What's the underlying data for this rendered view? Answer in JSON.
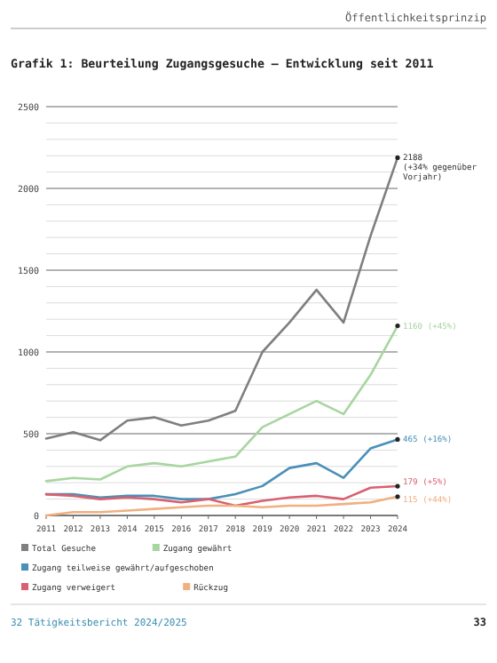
{
  "chart_data": {
    "type": "line",
    "title": "Grafik 1: Beurteilung Zugangsgesuche – Entwicklung seit 2011",
    "x": [
      2011,
      2012,
      2013,
      2014,
      2015,
      2016,
      2017,
      2018,
      2019,
      2020,
      2021,
      2022,
      2023,
      2024
    ],
    "xlim": [
      2011,
      2024
    ],
    "xticks": [
      2011,
      2012,
      2013,
      2014,
      2015,
      2016,
      2017,
      2018,
      2019,
      2020,
      2021,
      2022,
      2023,
      2024
    ],
    "ylim": [
      0,
      2500
    ],
    "yticks": [
      0,
      {
        "value": 100,
        "label": null
      },
      {
        "value": 200,
        "label": null
      },
      {
        "value": 300,
        "label": null
      },
      {
        "value": 400,
        "label": null
      },
      500,
      {
        "value": 600,
        "label": null
      },
      {
        "value": 700,
        "label": null
      },
      {
        "value": 800,
        "label": null
      },
      {
        "value": 900,
        "label": null
      },
      1000,
      {
        "value": 1100,
        "label": null
      },
      {
        "value": 1200,
        "label": null
      },
      {
        "value": 1300,
        "label": null
      },
      {
        "value": 1400,
        "label": null
      },
      1500,
      {
        "value": 1600,
        "label": null
      },
      {
        "value": 1700,
        "label": null
      },
      {
        "value": 1800,
        "label": null
      },
      {
        "value": 1900,
        "label": null
      },
      2000,
      {
        "value": 2100,
        "label": null
      },
      {
        "value": 2200,
        "label": null
      },
      {
        "value": 2300,
        "label": null
      },
      {
        "value": 2400,
        "label": null
      },
      2500
    ],
    "grid": "y",
    "legend": "bottom",
    "marker": "none",
    "line_style": "solid",
    "series": [
      {
        "name": "Total Gesuche",
        "color": "#7f7f7f",
        "values": [
          470,
          510,
          460,
          580,
          600,
          550,
          580,
          640,
          1000,
          1180,
          1380,
          1180,
          1710,
          2188
        ],
        "value_labels": [
          null,
          null,
          null,
          null,
          null,
          null,
          null,
          null,
          null,
          null,
          null,
          null,
          null,
          "2188\n(+34% gegenüber\nVorjahr)"
        ]
      },
      {
        "name": "Zugang gewährt",
        "color": "#a8d5a0",
        "values": [
          210,
          230,
          220,
          300,
          320,
          300,
          330,
          360,
          540,
          620,
          700,
          620,
          860,
          1160
        ],
        "value_labels": [
          null,
          null,
          null,
          null,
          null,
          null,
          null,
          null,
          null,
          null,
          null,
          null,
          null,
          "1160 (+45%)"
        ]
      },
      {
        "name": "Zugang teilweise gewährt/aufgeschoben",
        "color": "#4a90b8",
        "values": [
          130,
          130,
          110,
          120,
          120,
          100,
          100,
          130,
          180,
          290,
          320,
          230,
          410,
          465
        ],
        "value_labels": [
          null,
          null,
          null,
          null,
          null,
          null,
          null,
          null,
          null,
          null,
          null,
          null,
          null,
          "465 (+16%)"
        ]
      },
      {
        "name": "Zugang verweigert",
        "color": "#d96070",
        "values": [
          130,
          120,
          100,
          110,
          100,
          80,
          100,
          60,
          90,
          110,
          120,
          100,
          170,
          179
        ],
        "value_labels": [
          null,
          null,
          null,
          null,
          null,
          null,
          null,
          null,
          null,
          null,
          null,
          null,
          null,
          "179 (+5%)"
        ]
      },
      {
        "name": "Rückzug",
        "color": "#f0b080",
        "values": [
          0,
          20,
          20,
          30,
          40,
          50,
          60,
          60,
          50,
          60,
          60,
          70,
          80,
          115
        ],
        "value_labels": [
          null,
          null,
          null,
          null,
          null,
          null,
          null,
          null,
          null,
          null,
          null,
          null,
          null,
          "115 (+44%)"
        ]
      }
    ],
    "annotations": [
      "Öffentlichkeitsprinzip",
      "32   Tätigkeitsbericht 2024/2025",
      "33"
    ]
  }
}
